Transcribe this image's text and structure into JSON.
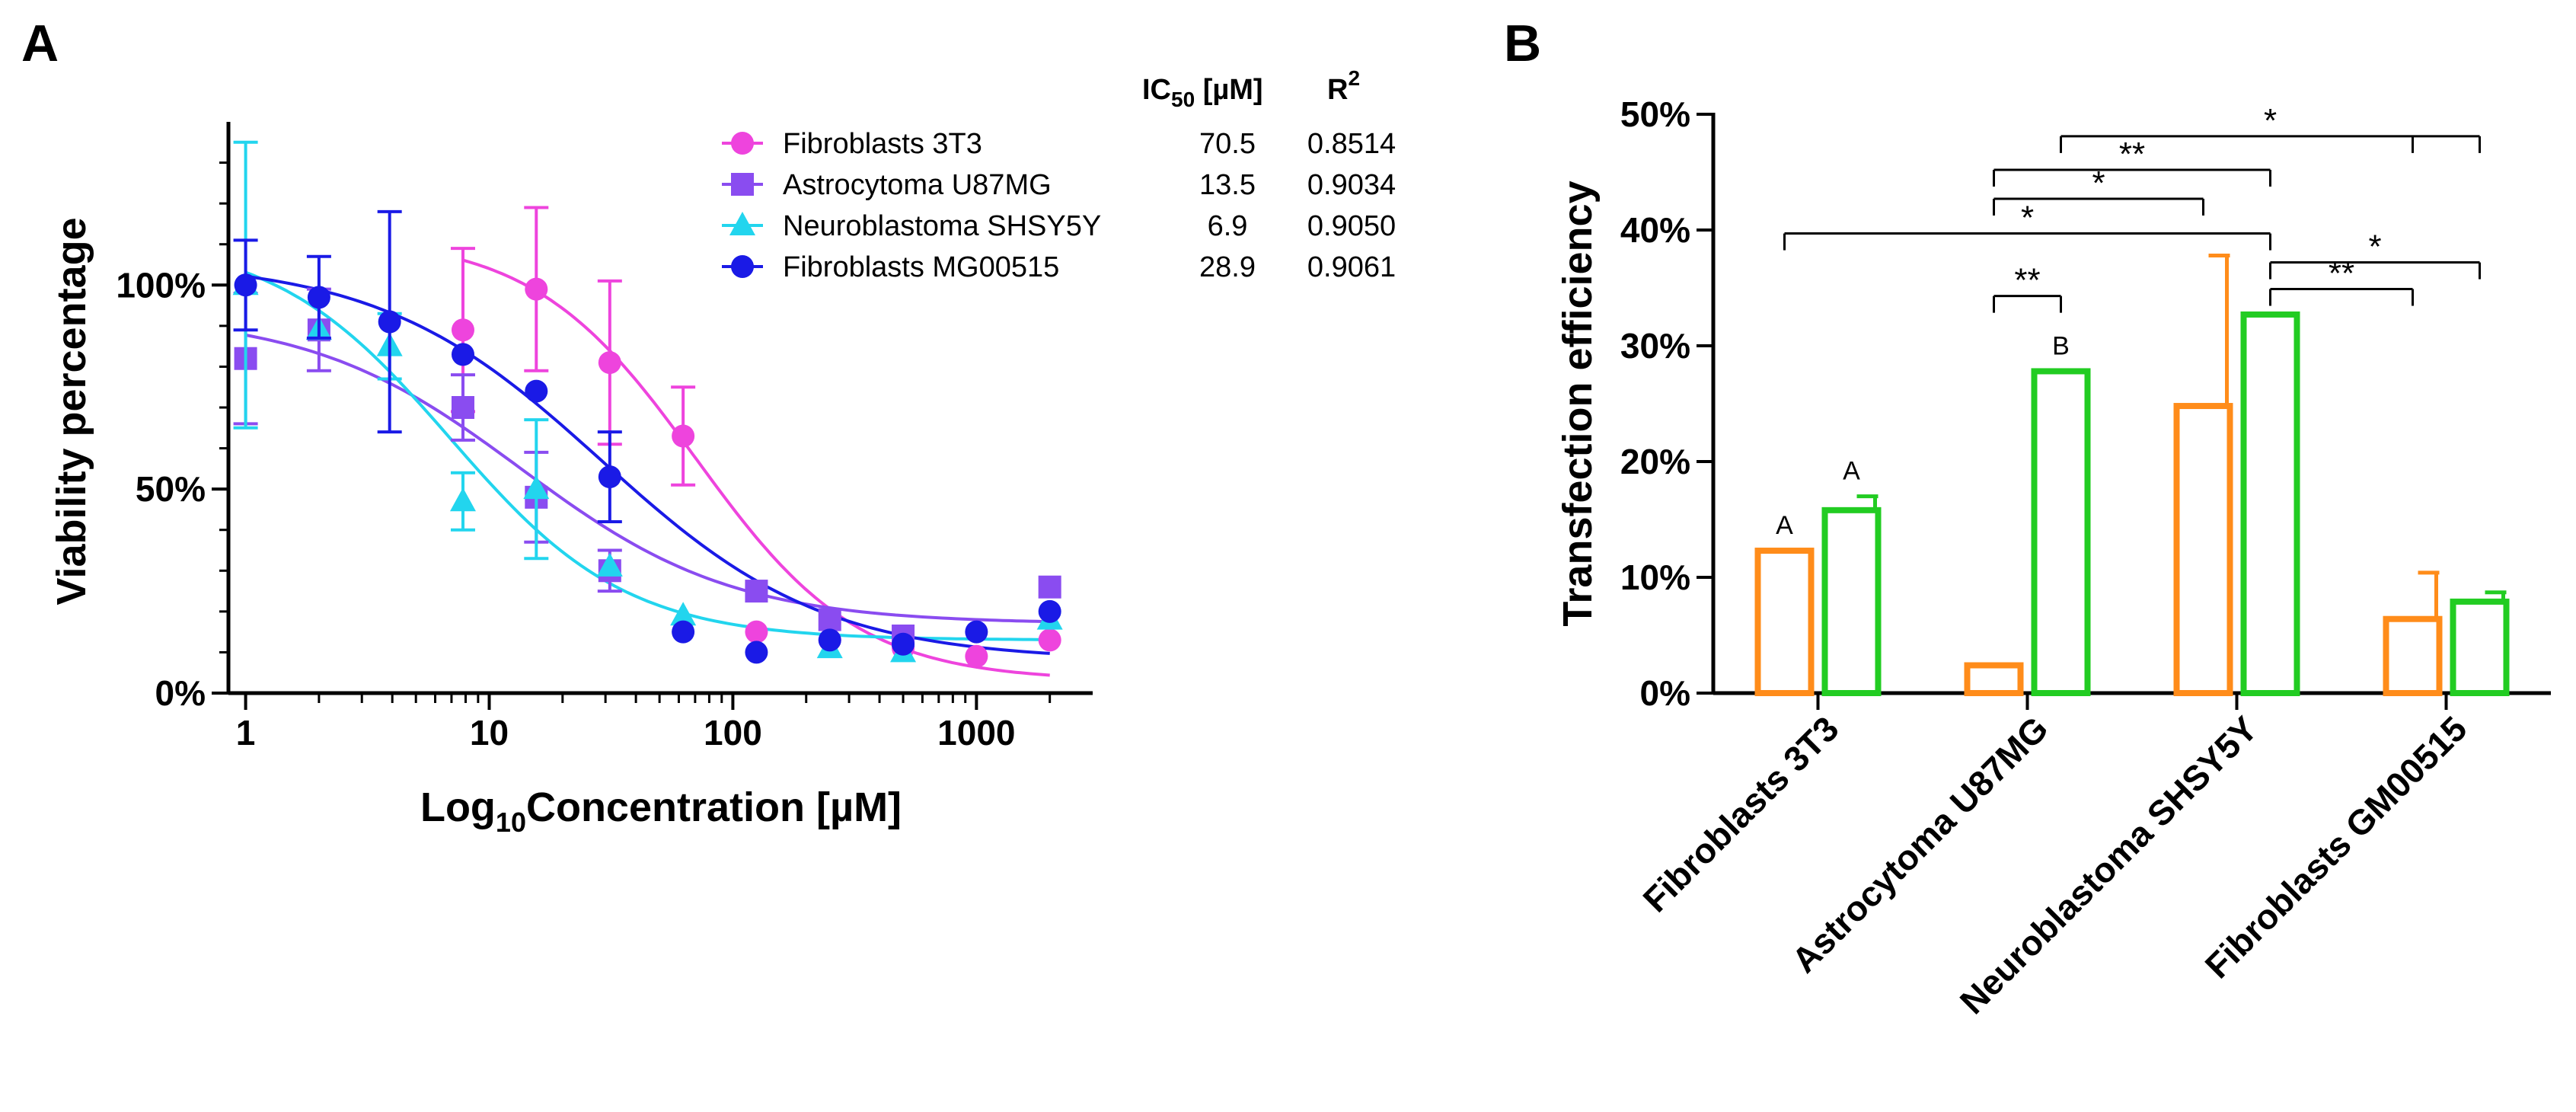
{
  "panels": {
    "a_label": "A",
    "b_label": "B"
  },
  "colors": {
    "fibroblasts_3t3": "#ee44dd",
    "astrocytoma": "#8a4cf0",
    "neuroblastoma": "#22d5ee",
    "fibroblasts_mg": "#1a1ae6",
    "bar_orange": "#ff8c1a",
    "bar_green": "#22cc22"
  },
  "chart_data": [
    {
      "type": "scatter",
      "panel": "A",
      "title": "",
      "xlabel_main": "Log",
      "xlabel_sub": "10",
      "xlabel_rest": "Concentration [µM]",
      "ylabel": "Viability percentage",
      "xscale": "log",
      "xlim": [
        0.85,
        3000
      ],
      "ylim": [
        0,
        140
      ],
      "xticks": [
        1,
        10,
        100,
        1000
      ],
      "xtick_labels": [
        "1",
        "10",
        "100",
        "1000"
      ],
      "yticks": [
        0,
        50,
        100
      ],
      "ytick_labels": [
        "0%",
        "50%",
        "100%"
      ],
      "legend_position": "top-right",
      "table_headers": {
        "ic50_main": "IC",
        "ic50_sub": "50",
        "ic50_rest": " [µM]",
        "r2_main": "R",
        "r2_sup": "2"
      },
      "series": [
        {
          "name": "Fibroblasts 3T3",
          "marker": "circle",
          "color_key": "fibroblasts_3t3",
          "ic50": "70.5",
          "r2": "0.8514",
          "fit": {
            "top": 112,
            "bottom": 3,
            "ic50": 70.5,
            "hill": 1.3,
            "xmin": 7.8,
            "xmax": 2000
          },
          "points": [
            {
              "x": 7.8,
              "y": 89,
              "err": 20
            },
            {
              "x": 15.6,
              "y": 99,
              "err": 20
            },
            {
              "x": 31.25,
              "y": 81,
              "err": 20
            },
            {
              "x": 62.5,
              "y": 63,
              "err": 12
            },
            {
              "x": 125,
              "y": 15,
              "err": 0
            },
            {
              "x": 250,
              "y": 13,
              "err": 0
            },
            {
              "x": 500,
              "y": 11,
              "err": 0
            },
            {
              "x": 1000,
              "y": 9,
              "err": 0
            },
            {
              "x": 2000,
              "y": 13,
              "err": 0
            }
          ]
        },
        {
          "name": "Astrocytoma U87MG",
          "marker": "square",
          "color_key": "astrocytoma",
          "ic50": "13.5",
          "r2": "0.9034",
          "fit": {
            "top": 93,
            "bottom": 17,
            "ic50": 13.5,
            "hill": 1.0,
            "xmin": 1,
            "xmax": 2000
          },
          "points": [
            {
              "x": 1,
              "y": 82,
              "err": 16
            },
            {
              "x": 2,
              "y": 89,
              "err": 10
            },
            {
              "x": 7.8,
              "y": 70,
              "err": 8
            },
            {
              "x": 15.6,
              "y": 48,
              "err": 11
            },
            {
              "x": 31.25,
              "y": 30,
              "err": 5
            },
            {
              "x": 125,
              "y": 25,
              "err": 0
            },
            {
              "x": 250,
              "y": 18,
              "err": 0
            },
            {
              "x": 500,
              "y": 14,
              "err": 0
            },
            {
              "x": 2000,
              "y": 26,
              "err": 0
            }
          ]
        },
        {
          "name": "Neuroblastoma SHSY5Y",
          "marker": "triangle",
          "color_key": "neuroblastoma",
          "ic50": "6.9",
          "r2": "0.9050",
          "fit": {
            "top": 112,
            "bottom": 13,
            "ic50": 6.9,
            "hill": 1.2,
            "xmin": 1,
            "xmax": 2000
          },
          "points": [
            {
              "x": 1,
              "y": 100,
              "err": 35
            },
            {
              "x": 2,
              "y": 89,
              "err": 0
            },
            {
              "x": 3.9,
              "y": 85,
              "err": 8
            },
            {
              "x": 7.8,
              "y": 47,
              "err": 7
            },
            {
              "x": 15.6,
              "y": 50,
              "err": 17
            },
            {
              "x": 31.25,
              "y": 31,
              "err": 0
            },
            {
              "x": 62.5,
              "y": 19,
              "err": 0
            },
            {
              "x": 250,
              "y": 11,
              "err": 0
            },
            {
              "x": 500,
              "y": 10,
              "err": 0
            },
            {
              "x": 2000,
              "y": 18,
              "err": 0
            }
          ]
        },
        {
          "name": "Fibroblasts MG00515",
          "marker": "circle",
          "color_key": "fibroblasts_mg",
          "ic50": "28.9",
          "r2": "0.9061",
          "fit": {
            "top": 106,
            "bottom": 8,
            "ic50": 28.9,
            "hill": 0.95,
            "xmin": 1,
            "xmax": 2000
          },
          "points": [
            {
              "x": 1,
              "y": 100,
              "err": 11
            },
            {
              "x": 2,
              "y": 97,
              "err": 10
            },
            {
              "x": 3.9,
              "y": 91,
              "err": 27
            },
            {
              "x": 7.8,
              "y": 83,
              "err": 0
            },
            {
              "x": 15.6,
              "y": 74,
              "err": 0
            },
            {
              "x": 31.25,
              "y": 53,
              "err": 11
            },
            {
              "x": 62.5,
              "y": 15,
              "err": 0
            },
            {
              "x": 125,
              "y": 10,
              "err": 0
            },
            {
              "x": 250,
              "y": 13,
              "err": 0
            },
            {
              "x": 500,
              "y": 12,
              "err": 0
            },
            {
              "x": 1000,
              "y": 15,
              "err": 0
            },
            {
              "x": 2000,
              "y": 20,
              "err": 0
            }
          ]
        }
      ]
    },
    {
      "type": "bar",
      "panel": "B",
      "title": "",
      "xlabel": "",
      "ylabel": "Transfection efficiency",
      "ylim": [
        0,
        50
      ],
      "yticks": [
        0,
        10,
        20,
        30,
        40,
        50
      ],
      "ytick_labels": [
        "0%",
        "10%",
        "20%",
        "30%",
        "40%",
        "50%"
      ],
      "categories": [
        "Fibroblasts 3T3",
        "Astrocytoma U87MG",
        "Neuroblastoma SHSY5Y",
        "Fibroblasts GM00515"
      ],
      "bars": [
        {
          "category": 0,
          "color_key": "bar_orange",
          "value": 12.3,
          "err": 0,
          "letter": "A"
        },
        {
          "category": 0,
          "color_key": "bar_green",
          "value": 15.8,
          "err": 1.2,
          "letter": "A"
        },
        {
          "category": 1,
          "color_key": "bar_orange",
          "value": 2.4,
          "err": 0,
          "letter": ""
        },
        {
          "category": 1,
          "color_key": "bar_green",
          "value": 27.8,
          "err": 0,
          "letter": "B"
        },
        {
          "category": 2,
          "color_key": "bar_orange",
          "value": 24.8,
          "err": 13,
          "letter": ""
        },
        {
          "category": 2,
          "color_key": "bar_green",
          "value": 32.7,
          "err": 0,
          "letter": ""
        },
        {
          "category": 3,
          "color_key": "bar_orange",
          "value": 6.4,
          "err": 4,
          "letter": ""
        },
        {
          "category": 3,
          "color_key": "bar_green",
          "value": 7.9,
          "err": 0.8,
          "letter": ""
        }
      ],
      "significance": [
        {
          "label": "*",
          "from_bar": 0,
          "to_bar": 5,
          "level": 39.7
        },
        {
          "label": "**",
          "from_bar": 2,
          "to_bar": 3,
          "level": 34.3
        },
        {
          "label": "*",
          "from_bar": 2,
          "to_bar": 4,
          "level": 42.7
        },
        {
          "label": "**",
          "from_bar": 2,
          "to_bar": 5,
          "level": 45.2
        },
        {
          "label": "*",
          "from_bar": 3,
          "to_bar": 7,
          "level": 48.1,
          "ticks": [
            6
          ]
        },
        {
          "label": "**",
          "from_bar": 5,
          "to_bar": 6,
          "level": 34.9
        },
        {
          "label": "*",
          "from_bar": 5,
          "to_bar": 7,
          "level": 37.2
        }
      ]
    }
  ]
}
